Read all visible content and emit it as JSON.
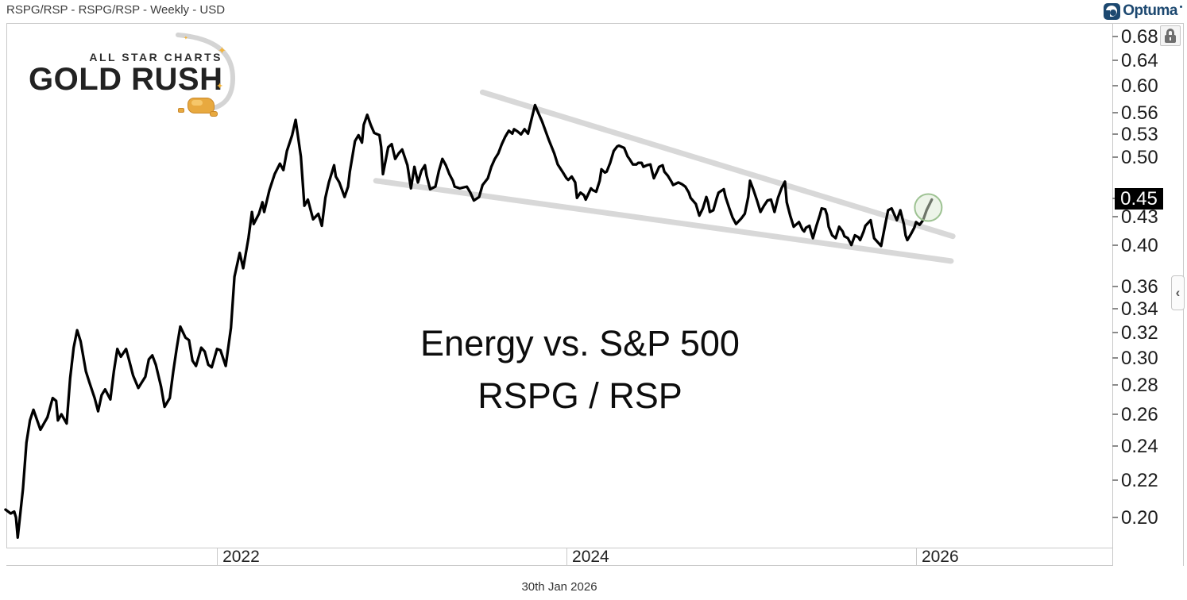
{
  "header": {
    "title": "RSPG/RSP - RSPG/RSP - Weekly - USD",
    "brand": "Optuma"
  },
  "watermark": {
    "line1": "ALL STAR CHARTS",
    "line2": "GOLD RUSH",
    "sparkle_glyph": "✦",
    "gold_color": "#e8a93f",
    "arc_color": "#d4d4d4"
  },
  "annotation": {
    "line1": "Energy vs. S&P 500",
    "line2": "RSPG / RSP"
  },
  "footer": {
    "date_label": "30th Jan 2026"
  },
  "price_tag": {
    "label": "0.45",
    "value": 0.45
  },
  "widgets": {
    "collapse_glyph": "‹",
    "lock_icon": "padlock"
  },
  "colors": {
    "price_line": "#000000",
    "trendline": "#d8d8d8",
    "circle_stroke": "#9dc292",
    "circle_fill": "#dcead3",
    "axis_text": "#1c1c1c",
    "brand_navy": "#1c4870"
  },
  "chart_data": {
    "type": "line",
    "title": "Energy vs. S&P 500 (RSPG / RSP)",
    "instrument": "RSPG/RSP",
    "timeframe": "Weekly",
    "currency": "USD",
    "grid": false,
    "x_axis": {
      "unit": "year",
      "ticks": [
        2022,
        2024,
        2026
      ],
      "range_years": [
        2020.795,
        2027.123
      ]
    },
    "y_axis": {
      "scale": "log",
      "range": [
        0.1852,
        0.7022
      ],
      "ticks": [
        0.68,
        0.64,
        0.6,
        0.56,
        0.53,
        0.5,
        0.45,
        0.43,
        0.4,
        0.36,
        0.34,
        0.32,
        0.3,
        0.28,
        0.26,
        0.24,
        0.22,
        0.2
      ],
      "tick_covered_by_price_tag": 0.45
    },
    "last": {
      "date": "30th Jan 2026",
      "value": 0.45
    },
    "series": [
      {
        "name": "RSPG/RSP Weekly close",
        "points": [
          [
            2020.79,
            0.204
          ],
          [
            2020.82,
            0.202
          ],
          [
            2020.84,
            0.203
          ],
          [
            2020.85,
            0.2
          ],
          [
            2020.86,
            0.19
          ],
          [
            2020.89,
            0.215
          ],
          [
            2020.91,
            0.242
          ],
          [
            2020.93,
            0.256
          ],
          [
            2020.95,
            0.263
          ],
          [
            2020.99,
            0.25
          ],
          [
            2021.01,
            0.254
          ],
          [
            2021.03,
            0.258
          ],
          [
            2021.06,
            0.271
          ],
          [
            2021.08,
            0.269
          ],
          [
            2021.09,
            0.256
          ],
          [
            2021.11,
            0.26
          ],
          [
            2021.14,
            0.254
          ],
          [
            2021.16,
            0.285
          ],
          [
            2021.18,
            0.308
          ],
          [
            2021.2,
            0.322
          ],
          [
            2021.22,
            0.313
          ],
          [
            2021.25,
            0.29
          ],
          [
            2021.27,
            0.282
          ],
          [
            2021.3,
            0.271
          ],
          [
            2021.32,
            0.262
          ],
          [
            2021.34,
            0.273
          ],
          [
            2021.36,
            0.277
          ],
          [
            2021.39,
            0.27
          ],
          [
            2021.41,
            0.29
          ],
          [
            2021.43,
            0.307
          ],
          [
            2021.45,
            0.301
          ],
          [
            2021.48,
            0.307
          ],
          [
            2021.5,
            0.297
          ],
          [
            2021.52,
            0.287
          ],
          [
            2021.55,
            0.278
          ],
          [
            2021.57,
            0.282
          ],
          [
            2021.59,
            0.286
          ],
          [
            2021.61,
            0.299
          ],
          [
            2021.63,
            0.302
          ],
          [
            2021.65,
            0.295
          ],
          [
            2021.68,
            0.279
          ],
          [
            2021.7,
            0.265
          ],
          [
            2021.73,
            0.271
          ],
          [
            2021.75,
            0.29
          ],
          [
            2021.77,
            0.308
          ],
          [
            2021.79,
            0.325
          ],
          [
            2021.82,
            0.316
          ],
          [
            2021.84,
            0.314
          ],
          [
            2021.86,
            0.298
          ],
          [
            2021.88,
            0.294
          ],
          [
            2021.91,
            0.308
          ],
          [
            2021.93,
            0.305
          ],
          [
            2021.95,
            0.295
          ],
          [
            2021.97,
            0.293
          ],
          [
            2022.0,
            0.307
          ],
          [
            2022.02,
            0.306
          ],
          [
            2022.05,
            0.294
          ],
          [
            2022.08,
            0.324
          ],
          [
            2022.1,
            0.369
          ],
          [
            2022.13,
            0.392
          ],
          [
            2022.15,
            0.377
          ],
          [
            2022.18,
            0.407
          ],
          [
            2022.2,
            0.435
          ],
          [
            2022.21,
            0.422
          ],
          [
            2022.24,
            0.433
          ],
          [
            2022.26,
            0.446
          ],
          [
            2022.27,
            0.435
          ],
          [
            2022.3,
            0.46
          ],
          [
            2022.33,
            0.479
          ],
          [
            2022.36,
            0.492
          ],
          [
            2022.38,
            0.484
          ],
          [
            2022.4,
            0.508
          ],
          [
            2022.43,
            0.529
          ],
          [
            2022.45,
            0.55
          ],
          [
            2022.48,
            0.501
          ],
          [
            2022.5,
            0.442
          ],
          [
            2022.52,
            0.449
          ],
          [
            2022.55,
            0.427
          ],
          [
            2022.58,
            0.433
          ],
          [
            2022.6,
            0.42
          ],
          [
            2022.62,
            0.451
          ],
          [
            2022.64,
            0.469
          ],
          [
            2022.67,
            0.49
          ],
          [
            2022.68,
            0.476
          ],
          [
            2022.7,
            0.469
          ],
          [
            2022.73,
            0.452
          ],
          [
            2022.75,
            0.464
          ],
          [
            2022.76,
            0.482
          ],
          [
            2022.79,
            0.521
          ],
          [
            2022.81,
            0.529
          ],
          [
            2022.83,
            0.519
          ],
          [
            2022.84,
            0.543
          ],
          [
            2022.86,
            0.557
          ],
          [
            2022.88,
            0.543
          ],
          [
            2022.9,
            0.532
          ],
          [
            2022.93,
            0.529
          ],
          [
            2022.94,
            0.513
          ],
          [
            2022.95,
            0.479
          ],
          [
            2022.98,
            0.513
          ],
          [
            2023.0,
            0.517
          ],
          [
            2023.02,
            0.498
          ],
          [
            2023.04,
            0.505
          ],
          [
            2023.06,
            0.51
          ],
          [
            2023.09,
            0.49
          ],
          [
            2023.11,
            0.462
          ],
          [
            2023.13,
            0.488
          ],
          [
            2023.15,
            0.469
          ],
          [
            2023.17,
            0.483
          ],
          [
            2023.19,
            0.49
          ],
          [
            2023.2,
            0.477
          ],
          [
            2023.22,
            0.461
          ],
          [
            2023.25,
            0.464
          ],
          [
            2023.27,
            0.483
          ],
          [
            2023.29,
            0.498
          ],
          [
            2023.31,
            0.49
          ],
          [
            2023.33,
            0.479
          ],
          [
            2023.35,
            0.471
          ],
          [
            2023.36,
            0.464
          ],
          [
            2023.39,
            0.462
          ],
          [
            2023.41,
            0.463
          ],
          [
            2023.43,
            0.464
          ],
          [
            2023.45,
            0.457
          ],
          [
            2023.47,
            0.448
          ],
          [
            2023.5,
            0.452
          ],
          [
            2023.52,
            0.466
          ],
          [
            2023.55,
            0.474
          ],
          [
            2023.57,
            0.488
          ],
          [
            2023.59,
            0.498
          ],
          [
            2023.61,
            0.505
          ],
          [
            2023.63,
            0.517
          ],
          [
            2023.65,
            0.527
          ],
          [
            2023.67,
            0.535
          ],
          [
            2023.69,
            0.531
          ],
          [
            2023.7,
            0.537
          ],
          [
            2023.72,
            0.534
          ],
          [
            2023.74,
            0.53
          ],
          [
            2023.76,
            0.537
          ],
          [
            2023.78,
            0.531
          ],
          [
            2023.8,
            0.551
          ],
          [
            2023.82,
            0.571
          ],
          [
            2023.84,
            0.559
          ],
          [
            2023.86,
            0.548
          ],
          [
            2023.9,
            0.522
          ],
          [
            2023.93,
            0.505
          ],
          [
            2023.95,
            0.491
          ],
          [
            2023.98,
            0.481
          ],
          [
            2024.0,
            0.474
          ],
          [
            2024.01,
            0.472
          ],
          [
            2024.03,
            0.476
          ],
          [
            2024.05,
            0.469
          ],
          [
            2024.06,
            0.451
          ],
          [
            2024.08,
            0.457
          ],
          [
            2024.1,
            0.454
          ],
          [
            2024.11,
            0.449
          ],
          [
            2024.14,
            0.462
          ],
          [
            2024.15,
            0.46
          ],
          [
            2024.17,
            0.458
          ],
          [
            2024.19,
            0.471
          ],
          [
            2024.2,
            0.485
          ],
          [
            2024.22,
            0.481
          ],
          [
            2024.23,
            0.482
          ],
          [
            2024.25,
            0.493
          ],
          [
            2024.27,
            0.508
          ],
          [
            2024.29,
            0.514
          ],
          [
            2024.3,
            0.515
          ],
          [
            2024.33,
            0.512
          ],
          [
            2024.35,
            0.501
          ],
          [
            2024.36,
            0.498
          ],
          [
            2024.38,
            0.491
          ],
          [
            2024.4,
            0.491
          ],
          [
            2024.41,
            0.493
          ],
          [
            2024.43,
            0.493
          ],
          [
            2024.44,
            0.488
          ],
          [
            2024.46,
            0.49
          ],
          [
            2024.48,
            0.491
          ],
          [
            2024.49,
            0.482
          ],
          [
            2024.5,
            0.474
          ],
          [
            2024.52,
            0.483
          ],
          [
            2024.53,
            0.488
          ],
          [
            2024.55,
            0.49
          ],
          [
            2024.56,
            0.482
          ],
          [
            2024.58,
            0.477
          ],
          [
            2024.6,
            0.47
          ],
          [
            2024.61,
            0.466
          ],
          [
            2024.64,
            0.469
          ],
          [
            2024.66,
            0.467
          ],
          [
            2024.68,
            0.464
          ],
          [
            2024.7,
            0.457
          ],
          [
            2024.71,
            0.451
          ],
          [
            2024.74,
            0.444
          ],
          [
            2024.76,
            0.431
          ],
          [
            2024.78,
            0.439
          ],
          [
            2024.8,
            0.452
          ],
          [
            2024.81,
            0.446
          ],
          [
            2024.82,
            0.435
          ],
          [
            2024.83,
            0.436
          ],
          [
            2024.84,
            0.437
          ],
          [
            2024.86,
            0.451
          ],
          [
            2024.87,
            0.457
          ],
          [
            2024.9,
            0.461
          ],
          [
            2024.91,
            0.452
          ],
          [
            2024.93,
            0.44
          ],
          [
            2024.95,
            0.429
          ],
          [
            2024.97,
            0.422
          ],
          [
            2025.0,
            0.428
          ],
          [
            2025.02,
            0.433
          ],
          [
            2025.04,
            0.452
          ],
          [
            2025.05,
            0.471
          ],
          [
            2025.07,
            0.46
          ],
          [
            2025.09,
            0.448
          ],
          [
            2025.11,
            0.435
          ],
          [
            2025.13,
            0.442
          ],
          [
            2025.15,
            0.448
          ],
          [
            2025.17,
            0.449
          ],
          [
            2025.19,
            0.435
          ],
          [
            2025.21,
            0.451
          ],
          [
            2025.23,
            0.462
          ],
          [
            2025.25,
            0.47
          ],
          [
            2025.26,
            0.446
          ],
          [
            2025.28,
            0.431
          ],
          [
            2025.3,
            0.419
          ],
          [
            2025.33,
            0.424
          ],
          [
            2025.35,
            0.416
          ],
          [
            2025.36,
            0.414
          ],
          [
            2025.37,
            0.418
          ],
          [
            2025.39,
            0.42
          ],
          [
            2025.4,
            0.413
          ],
          [
            2025.41,
            0.407
          ],
          [
            2025.43,
            0.42
          ],
          [
            2025.45,
            0.432
          ],
          [
            2025.46,
            0.439
          ],
          [
            2025.48,
            0.438
          ],
          [
            2025.49,
            0.432
          ],
          [
            2025.5,
            0.419
          ],
          [
            2025.52,
            0.41
          ],
          [
            2025.54,
            0.407
          ],
          [
            2025.56,
            0.419
          ],
          [
            2025.58,
            0.414
          ],
          [
            2025.59,
            0.409
          ],
          [
            2025.61,
            0.407
          ],
          [
            2025.63,
            0.4
          ],
          [
            2025.65,
            0.41
          ],
          [
            2025.67,
            0.408
          ],
          [
            2025.68,
            0.405
          ],
          [
            2025.7,
            0.414
          ],
          [
            2025.71,
            0.42
          ],
          [
            2025.74,
            0.426
          ],
          [
            2025.76,
            0.407
          ],
          [
            2025.78,
            0.403
          ],
          [
            2025.8,
            0.399
          ],
          [
            2025.82,
            0.418
          ],
          [
            2025.84,
            0.437
          ],
          [
            2025.86,
            0.439
          ],
          [
            2025.89,
            0.426
          ],
          [
            2025.91,
            0.437
          ],
          [
            2025.93,
            0.422
          ],
          [
            2025.94,
            0.41
          ],
          [
            2025.95,
            0.405
          ],
          [
            2025.97,
            0.411
          ],
          [
            2025.99,
            0.418
          ],
          [
            2026.0,
            0.424
          ],
          [
            2026.02,
            0.421
          ],
          [
            2026.04,
            0.426
          ],
          [
            2026.06,
            0.437
          ],
          [
            2026.09,
            0.449
          ]
        ]
      }
    ],
    "annotations": {
      "trendlines": [
        {
          "name": "upper-resistance",
          "from": [
            2023.52,
            0.59
          ],
          "to": [
            2026.21,
            0.409
          ]
        },
        {
          "name": "lower-support",
          "from": [
            2022.91,
            0.471
          ],
          "to": [
            2026.2,
            0.384
          ]
        }
      ],
      "highlight_circle": {
        "t": 2026.07,
        "v": 0.44,
        "radius_px": 17
      }
    }
  }
}
